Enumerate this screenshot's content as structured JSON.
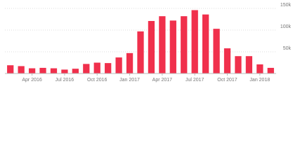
{
  "chart_data": {
    "type": "bar",
    "categories": [
      null,
      null,
      "Apr 2016",
      null,
      null,
      "Jul 2016",
      null,
      null,
      "Oct 2016",
      null,
      null,
      "Jan 2017",
      null,
      null,
      "Apr 2017",
      null,
      null,
      "Jul 2017",
      null,
      null,
      "Oct 2017",
      null,
      null,
      "Jan 2018",
      null
    ],
    "values": [
      19000,
      17000,
      12000,
      13000,
      12000,
      9000,
      11000,
      22000,
      25000,
      24000,
      37000,
      47000,
      97000,
      121000,
      132000,
      122000,
      132000,
      146000,
      136000,
      103000,
      58000,
      40000,
      40000,
      21000,
      13000
    ],
    "color": "#f0304c",
    "ylim": [
      0,
      150000
    ],
    "yticks": [
      {
        "value": 50000,
        "label": "50k"
      },
      {
        "value": 100000,
        "label": "100k"
      },
      {
        "value": 150000,
        "label": "150k"
      }
    ],
    "grid": true
  }
}
